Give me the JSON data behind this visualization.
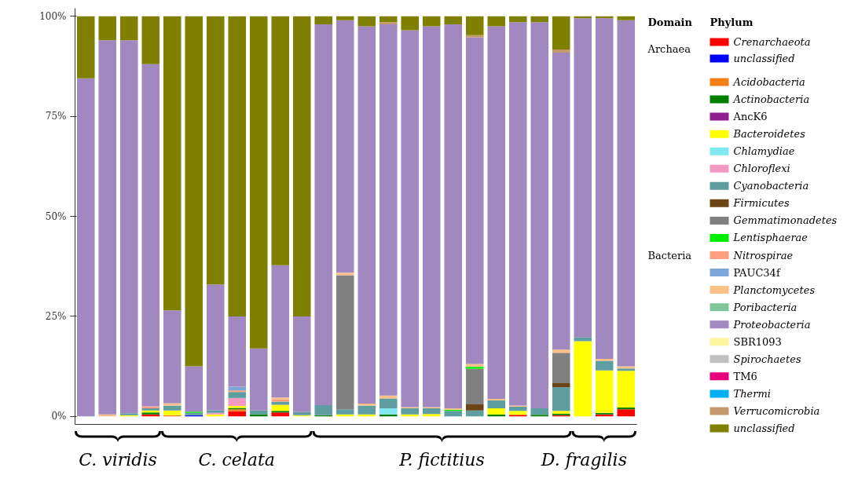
{
  "chart_data": {
    "type": "bar",
    "stacked": true,
    "legend": "right",
    "legend_title": "Phylum",
    "grid": false,
    "tick_labels": "y",
    "ylim": [
      -2,
      102
    ],
    "yticks": [
      {
        "value": 0,
        "label": "0%"
      },
      {
        "value": 25,
        "label": "25%"
      },
      {
        "value": 50,
        "label": "50%"
      },
      {
        "value": 75,
        "label": "75%"
      },
      {
        "value": 100,
        "label": "100%"
      }
    ],
    "annotations": [
      "Domain",
      "Archaea",
      "Bacteria",
      "C. viridis",
      "C. celata",
      "P. fictitius",
      "D. fragilis"
    ],
    "categories": [
      null,
      null,
      null,
      null,
      null,
      null,
      null,
      null,
      null,
      null,
      null,
      null,
      null,
      null,
      null,
      null,
      null,
      null,
      null,
      null,
      null,
      null,
      null,
      null,
      null,
      null
    ],
    "series": [
      {
        "name": "Crenarchaeota",
        "color": "#ff0000",
        "values": [
          0,
          0,
          0,
          0.5,
          0,
          0,
          0,
          1.3,
          0,
          1,
          0,
          0,
          0,
          0,
          0,
          0,
          0,
          0,
          0,
          0,
          0.4,
          0,
          0.3,
          0,
          0.5,
          1.8
        ]
      },
      {
        "name": "unclassified",
        "color": "#0000ff",
        "values": [
          0,
          0,
          0,
          0,
          0,
          0.3,
          0,
          0,
          0,
          0,
          0,
          0,
          0,
          0,
          0,
          0,
          0,
          0,
          0,
          0,
          0,
          0,
          0,
          0,
          0,
          0
        ]
      },
      {
        "name": "Acidobacteria",
        "color": "#f57f17",
        "values": [
          0,
          0,
          0,
          0,
          0.3,
          0,
          0,
          0.5,
          0,
          0,
          0,
          0,
          0,
          0,
          0,
          0,
          0,
          0,
          0,
          0,
          0,
          0,
          0,
          0,
          0,
          0
        ]
      },
      {
        "name": "Actinobacteria",
        "color": "#008000",
        "values": [
          0,
          0,
          0,
          0.5,
          0,
          0,
          0,
          0.3,
          0.5,
          0.4,
          0,
          0.3,
          0,
          0,
          0.5,
          0,
          0,
          0,
          0,
          0.5,
          0,
          0.4,
          0.4,
          0,
          0.4,
          0.4
        ]
      },
      {
        "name": "AncK6",
        "color": "#8e1f8e",
        "values": [
          0,
          0,
          0,
          0,
          0,
          0,
          0,
          0,
          0,
          0,
          0,
          0,
          0,
          0,
          0,
          0,
          0,
          0,
          0,
          0,
          0,
          0,
          0,
          0,
          0,
          0
        ]
      },
      {
        "name": "Bacteroidetes",
        "color": "#ffff00",
        "values": [
          0,
          0,
          0.3,
          0.5,
          1.2,
          0,
          0.5,
          0.5,
          0,
          1.5,
          0.3,
          0,
          0.5,
          0.5,
          0,
          0.5,
          0.6,
          0,
          0,
          1.5,
          1,
          0,
          0.7,
          18.8,
          10.6,
          9.2
        ]
      },
      {
        "name": "Chlamydiae",
        "color": "#7fe8f0",
        "values": [
          0,
          0,
          0,
          0,
          0,
          0,
          0,
          0,
          0,
          0,
          0,
          0,
          0,
          0,
          1.5,
          0,
          0,
          0,
          0,
          0,
          0,
          0,
          0,
          0,
          0,
          0
        ]
      },
      {
        "name": "Chloroflexi",
        "color": "#f49ac2",
        "values": [
          0,
          0,
          0,
          0,
          0,
          0,
          0.4,
          2,
          0,
          0,
          0,
          0,
          0,
          0,
          0,
          0,
          0,
          0,
          0,
          0,
          0,
          0,
          0,
          0,
          0,
          0
        ]
      },
      {
        "name": "Cyanobacteria",
        "color": "#5f9ea0",
        "values": [
          0,
          0,
          0.5,
          0.5,
          1.2,
          0.6,
          0.6,
          1.5,
          1,
          0.8,
          0.8,
          2.5,
          1.3,
          2.2,
          2.5,
          1.5,
          1.4,
          1.4,
          1.5,
          2,
          1,
          1.6,
          5.9,
          1,
          2.4,
          0.6
        ]
      },
      {
        "name": "Firmicutes",
        "color": "#6b4513",
        "values": [
          0,
          0,
          0,
          0,
          0,
          0,
          0,
          0,
          0,
          0,
          0,
          0,
          0,
          0,
          0,
          0,
          0,
          0,
          1.5,
          0,
          0,
          0,
          1,
          0,
          0,
          0
        ]
      },
      {
        "name": "Gemmatimonadetes",
        "color": "#808080",
        "values": [
          0,
          0,
          0,
          0,
          0,
          0,
          0,
          0,
          0,
          0,
          0,
          0,
          33.5,
          0,
          0,
          0,
          0,
          0,
          8.9,
          0,
          0,
          0,
          7.6,
          0,
          0,
          0
        ]
      },
      {
        "name": "Lentisphaerae",
        "color": "#00ee00",
        "values": [
          0,
          0,
          0,
          0,
          0,
          0.3,
          0,
          0,
          0,
          0,
          0,
          0,
          0,
          0,
          0,
          0,
          0,
          0.3,
          0.5,
          0,
          0,
          0,
          0,
          0,
          0,
          0
        ]
      },
      {
        "name": "Nitrospirae",
        "color": "#ff9f80",
        "values": [
          0,
          0,
          0,
          0.5,
          0,
          0,
          0,
          0.4,
          0,
          0.5,
          0,
          0,
          0,
          0,
          0,
          0,
          0,
          0,
          0,
          0,
          0,
          0,
          0,
          0,
          0,
          0
        ]
      },
      {
        "name": "PAUC34f",
        "color": "#7ba7d8",
        "values": [
          0,
          0,
          0,
          0,
          0,
          0,
          0,
          0.9,
          0,
          0,
          0,
          0,
          0,
          0,
          0,
          0,
          0,
          0,
          0,
          0,
          0,
          0,
          0,
          0,
          0,
          0
        ]
      },
      {
        "name": "Planctomycetes",
        "color": "#fdc086",
        "values": [
          0,
          0.5,
          0,
          0,
          0.6,
          0,
          0,
          0,
          0,
          0.5,
          0,
          0,
          0.6,
          0.5,
          0.7,
          0.3,
          0.3,
          0.3,
          0.7,
          0.4,
          0.3,
          0,
          0.8,
          0,
          0.5,
          0.5
        ]
      },
      {
        "name": "Poribacteria",
        "color": "#7fc79b",
        "values": [
          0,
          0,
          0,
          0,
          0,
          0,
          0,
          0,
          0,
          0,
          0,
          0,
          0,
          0,
          0,
          0,
          0,
          0,
          0,
          0,
          0,
          0,
          0,
          0,
          0,
          0
        ]
      },
      {
        "name": "Proteobacteria",
        "color": "#a288c0",
        "values": [
          84.5,
          93.5,
          93.2,
          85.5,
          23.2,
          11.3,
          31.5,
          17.6,
          15.5,
          33.1,
          23.9,
          95.2,
          63.1,
          94.3,
          92.8,
          94.2,
          95.2,
          96,
          81.6,
          93.1,
          95.8,
          96.5,
          74.2,
          79.7,
          85.1,
          86.5
        ]
      },
      {
        "name": "SBR1093",
        "color": "#fff59d",
        "values": [
          0,
          0,
          0,
          0,
          0,
          0,
          0,
          0,
          0,
          0,
          0,
          0,
          0,
          0,
          0,
          0,
          0,
          0,
          0,
          0,
          0,
          0,
          0,
          0,
          0,
          0
        ]
      },
      {
        "name": "Spirochaetes",
        "color": "#c0c0c0",
        "values": [
          0,
          0,
          0,
          0,
          0,
          0,
          0,
          0,
          0,
          0,
          0,
          0,
          0,
          0,
          0,
          0,
          0,
          0,
          0,
          0,
          0,
          0,
          0,
          0,
          0,
          0
        ]
      },
      {
        "name": "TM6",
        "color": "#e6007e",
        "values": [
          0,
          0,
          0,
          0,
          0,
          0,
          0,
          0,
          0,
          0,
          0,
          0,
          0,
          0,
          0,
          0,
          0,
          0,
          0,
          0,
          0,
          0,
          0,
          0,
          0,
          0
        ]
      },
      {
        "name": "Thermi",
        "color": "#00b0f0",
        "values": [
          0,
          0,
          0,
          0,
          0,
          0,
          0,
          0,
          0,
          0,
          0,
          0,
          0,
          0,
          0,
          0,
          0,
          0,
          0,
          0,
          0,
          0,
          0,
          0,
          0,
          0
        ]
      },
      {
        "name": "Verrucomicrobia",
        "color": "#c49a6c",
        "values": [
          0,
          0,
          0,
          0,
          0,
          0,
          0,
          0,
          0,
          0,
          0,
          0,
          0,
          0,
          0.5,
          0,
          0,
          0,
          0.6,
          0,
          0,
          0,
          0.8,
          0,
          0,
          0
        ]
      },
      {
        "name": "unclassified",
        "color": "#808000",
        "values": [
          15.5,
          6,
          6,
          12,
          73.5,
          87.5,
          67,
          75,
          83,
          62.2,
          75,
          2,
          1,
          2.5,
          1.5,
          3.5,
          2.5,
          2,
          4.7,
          2.5,
          1.5,
          1.5,
          8.3,
          0.5,
          0.5,
          1
        ]
      }
    ]
  }
}
